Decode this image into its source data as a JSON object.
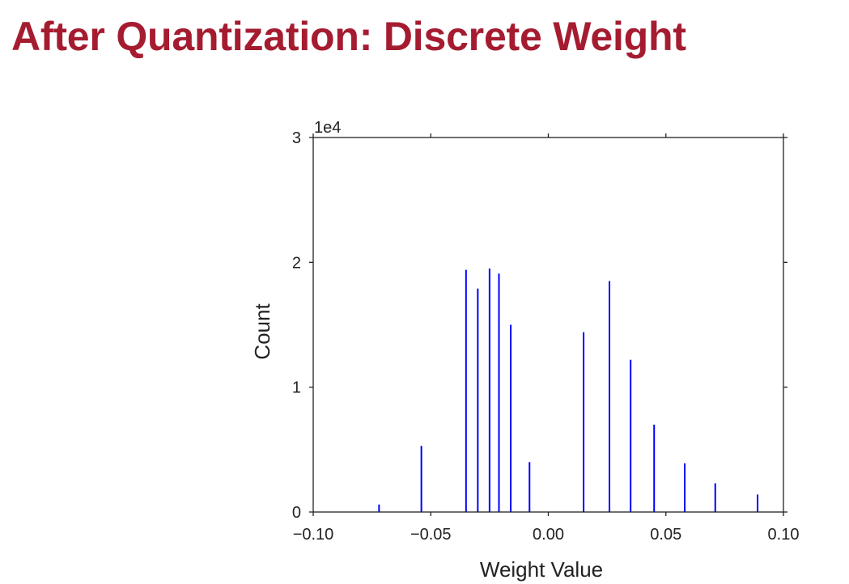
{
  "slide": {
    "title": "After Quantization: Discrete Weight",
    "title_color": "#a51c30"
  },
  "chart_data": {
    "type": "bar",
    "xlabel": "Weight Value",
    "ylabel": "Count",
    "y_scale_label": "1e4",
    "xlim": [
      -0.1,
      0.1
    ],
    "ylim": [
      0,
      3
    ],
    "xticks": [
      -0.1,
      -0.05,
      0.0,
      0.05,
      0.1
    ],
    "xtick_labels": [
      "−0.10",
      "−0.05",
      "0.00",
      "0.05",
      "0.10"
    ],
    "yticks": [
      0,
      1,
      2,
      3
    ],
    "ytick_labels": [
      "0",
      "1",
      "2",
      "3"
    ],
    "grid": false,
    "bar_color": "#0000ff",
    "x": [
      -0.072,
      -0.054,
      -0.035,
      -0.03,
      -0.025,
      -0.021,
      -0.016,
      -0.008,
      0.015,
      0.026,
      0.035,
      0.045,
      0.058,
      0.071,
      0.089
    ],
    "values": [
      0.06,
      0.53,
      1.94,
      1.79,
      1.95,
      1.91,
      1.5,
      0.4,
      1.44,
      1.85,
      1.22,
      0.7,
      0.39,
      0.23,
      0.14
    ]
  }
}
